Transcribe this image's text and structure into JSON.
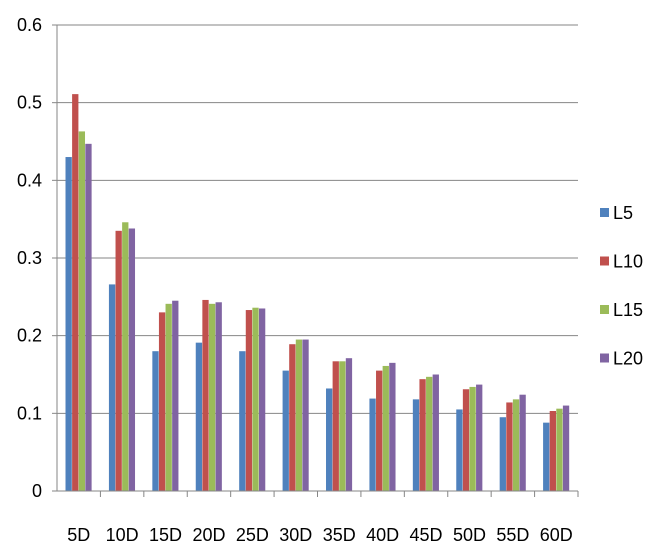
{
  "chart_data": {
    "type": "bar",
    "title": "",
    "xlabel": "",
    "ylabel": "",
    "ylim": [
      0,
      0.6
    ],
    "yticks": [
      "0",
      "0.1",
      "0.2",
      "0.3",
      "0.4",
      "0.5",
      "0.6"
    ],
    "grid": true,
    "legend_position": "right",
    "categories": [
      "5D",
      "10D",
      "15D",
      "20D",
      "25D",
      "30D",
      "35D",
      "40D",
      "45D",
      "50D",
      "55D",
      "60D"
    ],
    "series": [
      {
        "name": "L5",
        "color": "#4F81BD",
        "values": [
          0.43,
          0.266,
          0.18,
          0.191,
          0.18,
          0.155,
          0.132,
          0.119,
          0.118,
          0.105,
          0.095,
          0.088
        ]
      },
      {
        "name": "L10",
        "color": "#C0504D",
        "values": [
          0.511,
          0.335,
          0.23,
          0.246,
          0.233,
          0.189,
          0.167,
          0.155,
          0.144,
          0.131,
          0.114,
          0.103
        ]
      },
      {
        "name": "L15",
        "color": "#9BBB59",
        "values": [
          0.463,
          0.346,
          0.241,
          0.241,
          0.236,
          0.195,
          0.167,
          0.161,
          0.147,
          0.134,
          0.118,
          0.106
        ]
      },
      {
        "name": "L20",
        "color": "#8064A2",
        "values": [
          0.447,
          0.338,
          0.245,
          0.243,
          0.235,
          0.195,
          0.171,
          0.165,
          0.15,
          0.137,
          0.124,
          0.11
        ]
      }
    ]
  }
}
